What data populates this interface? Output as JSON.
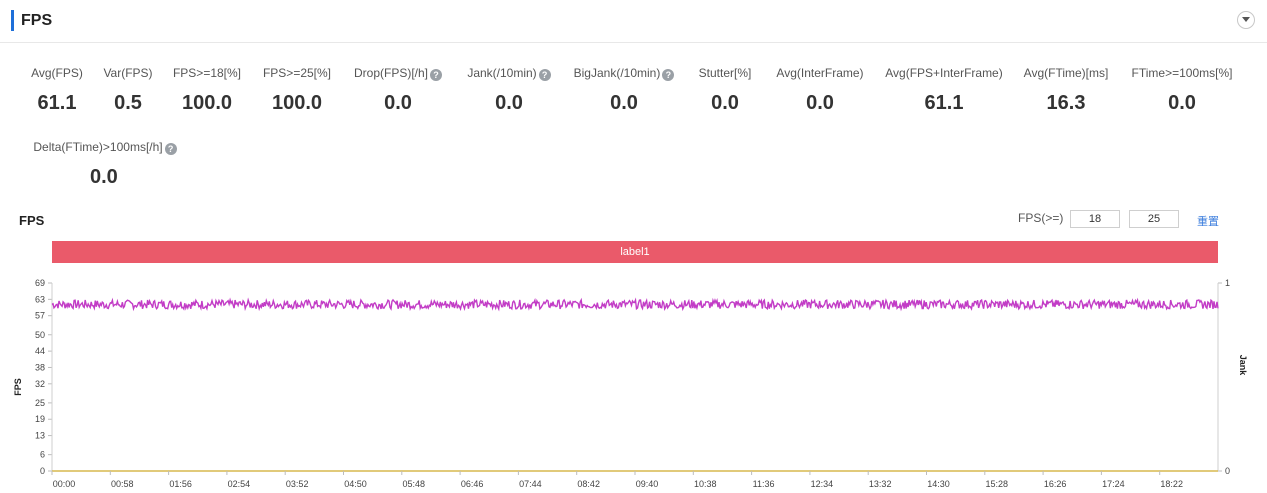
{
  "header": {
    "title": "FPS"
  },
  "metrics": [
    {
      "label": "Avg(FPS)",
      "value": "61.1",
      "help": false
    },
    {
      "label": "Var(FPS)",
      "value": "0.5",
      "help": false
    },
    {
      "label": "FPS>=18[%]",
      "value": "100.0",
      "help": false
    },
    {
      "label": "FPS>=25[%]",
      "value": "100.0",
      "help": false
    },
    {
      "label": "Drop(FPS)[/h]",
      "value": "0.0",
      "help": true
    },
    {
      "label": "Jank(/10min)",
      "value": "0.0",
      "help": true
    },
    {
      "label": "BigJank(/10min)",
      "value": "0.0",
      "help": true
    },
    {
      "label": "Stutter[%]",
      "value": "0.0",
      "help": false
    },
    {
      "label": "Avg(InterFrame)",
      "value": "0.0",
      "help": false
    },
    {
      "label": "Avg(FPS+InterFrame)",
      "value": "61.1",
      "help": false
    },
    {
      "label": "Avg(FTime)[ms]",
      "value": "16.3",
      "help": false
    },
    {
      "label": "FTime>=100ms[%]",
      "value": "0.0",
      "help": false
    },
    {
      "label": "Delta(FTime)>100ms[/h]",
      "value": "0.0",
      "help": true
    }
  ],
  "help_glyph": "?",
  "chart_section": {
    "title": "FPS",
    "threshold_label": "FPS(>=)",
    "threshold_1": "18",
    "threshold_2": "25",
    "reset_label": "重置",
    "band_label": "label1",
    "colors": {
      "fps_line": "#c23cc6",
      "band": "#ea5a6a",
      "baseline": "#d7b84e"
    }
  },
  "chart_data": {
    "type": "line",
    "xlabel": "",
    "ylabel": "FPS",
    "y2label": "Jank",
    "ylim": [
      0,
      69
    ],
    "y_ticks": [
      0,
      6,
      13,
      19,
      25,
      32,
      38,
      44,
      50,
      57,
      63,
      69
    ],
    "y2lim": [
      0,
      1
    ],
    "y2_ticks": [
      0,
      1
    ],
    "x_ticks": [
      "00:00",
      "00:58",
      "01:56",
      "02:54",
      "03:52",
      "04:50",
      "05:48",
      "06:46",
      "07:44",
      "08:42",
      "09:40",
      "10:38",
      "11:36",
      "12:34",
      "13:32",
      "14:30",
      "15:28",
      "16:26",
      "17:24",
      "18:22"
    ],
    "x_range_seconds": [
      0,
      1174
    ],
    "series": [
      {
        "name": "FPS",
        "value_min": 59.5,
        "value_max": 62.8,
        "mean": 61.1
      },
      {
        "name": "Jank",
        "value_min": 0,
        "value_max": 0,
        "mean": 0
      }
    ],
    "grid": false,
    "legend": "none"
  }
}
